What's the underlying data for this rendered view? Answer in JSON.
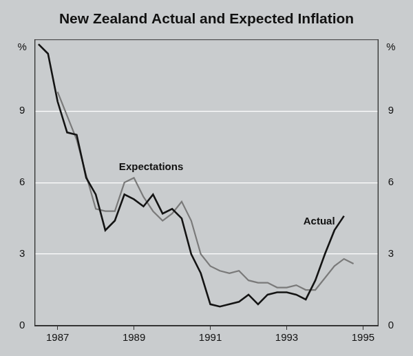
{
  "chart_data": {
    "type": "line",
    "title": "New Zealand Actual and Expected Inflation",
    "y_label": "%",
    "x": [
      1986.5,
      1986.75,
      1987,
      1987.25,
      1987.5,
      1987.75,
      1988,
      1988.25,
      1988.5,
      1988.75,
      1989,
      1989.25,
      1989.5,
      1989.75,
      1990,
      1990.25,
      1990.5,
      1990.75,
      1991,
      1991.25,
      1991.5,
      1991.75,
      1992,
      1992.25,
      1992.5,
      1992.75,
      1993,
      1993.25,
      1993.5,
      1993.75,
      1994,
      1994.25,
      1994.5,
      1994.75
    ],
    "series": [
      {
        "name": "Actual",
        "color": "#141414",
        "values": [
          11.8,
          11.4,
          9.4,
          8.1,
          8.0,
          6.2,
          5.5,
          4.0,
          4.4,
          5.5,
          5.3,
          5.0,
          5.5,
          4.7,
          4.9,
          4.5,
          3.0,
          2.2,
          0.9,
          0.8,
          0.9,
          1.0,
          1.3,
          0.9,
          1.3,
          1.4,
          1.4,
          1.3,
          1.1,
          1.9,
          3.0,
          4.0,
          4.6,
          null
        ]
      },
      {
        "name": "Expectations",
        "color": "#7a7a7a",
        "values": [
          null,
          null,
          9.8,
          8.8,
          7.8,
          6.3,
          4.9,
          4.8,
          4.8,
          6.0,
          6.2,
          5.4,
          4.8,
          4.4,
          4.7,
          5.2,
          4.4,
          3.0,
          2.5,
          2.3,
          2.2,
          2.3,
          1.9,
          1.8,
          1.8,
          1.6,
          1.6,
          1.7,
          1.5,
          1.5,
          2.0,
          2.5,
          2.8,
          2.6
        ]
      }
    ],
    "xlim": [
      1986.4,
      1995.4
    ],
    "xticks": [
      1987,
      1989,
      1991,
      1993,
      1995
    ],
    "ylim": [
      0,
      12
    ],
    "yticks": [
      0,
      3,
      6,
      9
    ],
    "y2lim": [
      0,
      12
    ],
    "y2ticks": [
      0,
      3,
      6,
      9
    ],
    "grid": true,
    "annotations": [
      {
        "text": "Expectations",
        "x": 1989.45,
        "y": 6.65
      },
      {
        "text": "Actual",
        "x": 1993.85,
        "y": 4.36
      }
    ]
  }
}
